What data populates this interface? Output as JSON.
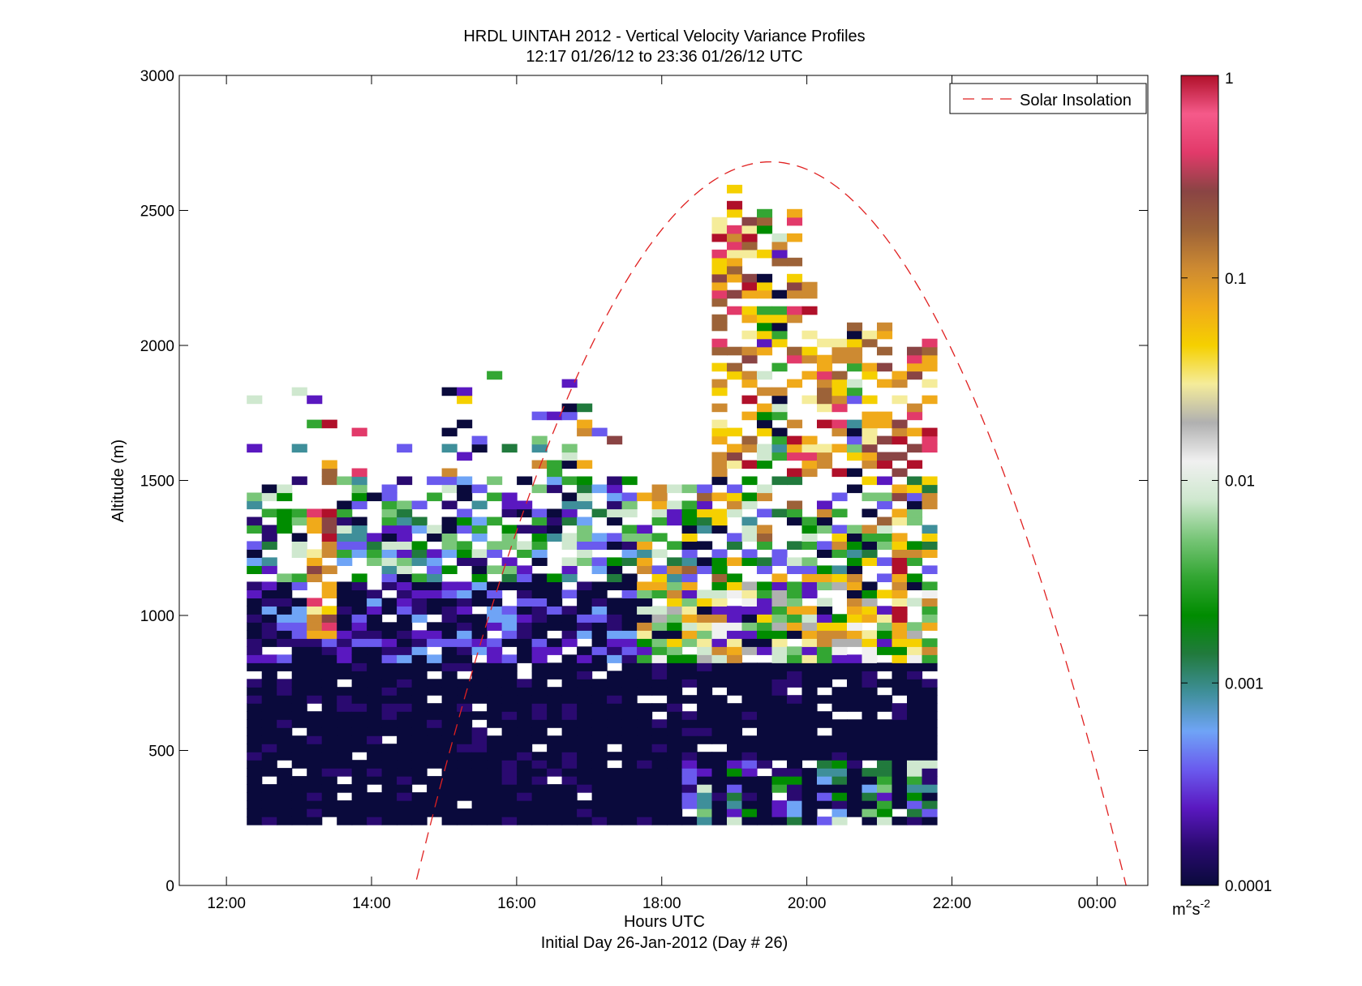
{
  "chart_data": {
    "type": "heatmap",
    "title": "HRDL UINTAH 2012 - Vertical Velocity Variance Profiles",
    "subtitle": "12:17 01/26/12 to 23:36 01/26/12  UTC",
    "xlabel": "Hours UTC",
    "xlabel2": "Initial Day 26-Jan-2012 (Day # 26)",
    "ylabel": "Altitude (m)",
    "x_range_hours": [
      11.35,
      24.7
    ],
    "ylim": [
      0,
      3000
    ],
    "x_tick_hours": [
      12,
      14,
      16,
      18,
      20,
      22,
      24
    ],
    "x_tick_labels": [
      "12:00",
      "14:00",
      "16:00",
      "18:00",
      "20:00",
      "22:00",
      "00:00"
    ],
    "y_ticks": [
      0,
      500,
      1000,
      1500,
      2000,
      2500,
      3000
    ],
    "y_tick_labels": [
      "0",
      "500",
      "1000",
      "1500",
      "2000",
      "2500",
      "3000"
    ],
    "colorbar": {
      "scale": "log",
      "range": [
        0.0001,
        1
      ],
      "ticks": [
        0.0001,
        0.001,
        0.01,
        0.1,
        1
      ],
      "tick_labels": [
        "0.0001",
        "0.001",
        "0.01",
        "0.1",
        "1"
      ],
      "units_main": "m",
      "units_sup1": "2",
      "units_mid": "s",
      "units_sup2": "-2",
      "gradient_colors": [
        "#0a0a3c",
        "#2a0a70",
        "#5a18c0",
        "#6a5aee",
        "#6fa4f6",
        "#3f8f9a",
        "#217a3d",
        "#008c00",
        "#33a633",
        "#79c679",
        "#cfe8cf",
        "#f0f0f0",
        "#b0b0b0",
        "#f5ec9a",
        "#f5d000",
        "#f0aa1a",
        "#cd8a32",
        "#9c6238",
        "#8a4444",
        "#e23a6a",
        "#f55a8a",
        "#b0102a"
      ]
    },
    "legend": {
      "entries": [
        "Solar Insolation"
      ],
      "placement": "top-right",
      "line_color": "#e02020",
      "line_style": "dashed"
    },
    "solar_insolation": {
      "rise_hour": 14.62,
      "peak_hour": 19.5,
      "set_hour": 24.42,
      "peak_altitude_m": 2680
    },
    "time_start_hour": 12.28,
    "time_step_hours": 0.2068,
    "altitude_start_m": 225,
    "altitude_step_m": 30,
    "column_count": 46,
    "column_top_altitude_m": [
      1850,
      1480,
      1480,
      1840,
      1790,
      1740,
      1500,
      1690,
      1460,
      1460,
      1660,
      1400,
      1510,
      1850,
      1840,
      1740,
      1900,
      1610,
      1640,
      1770,
      1730,
      1850,
      1830,
      1700,
      1640,
      1540,
      1520,
      1520,
      1480,
      1460,
      1460,
      2500,
      2590,
      2470,
      2480,
      2460,
      2500,
      2260,
      2100,
      2030,
      2080,
      2030,
      2080,
      1900,
      2020,
      2020
    ],
    "variance_m2s2_note": "cell values follow the colorbar log scale, 0.0001 to 1"
  }
}
